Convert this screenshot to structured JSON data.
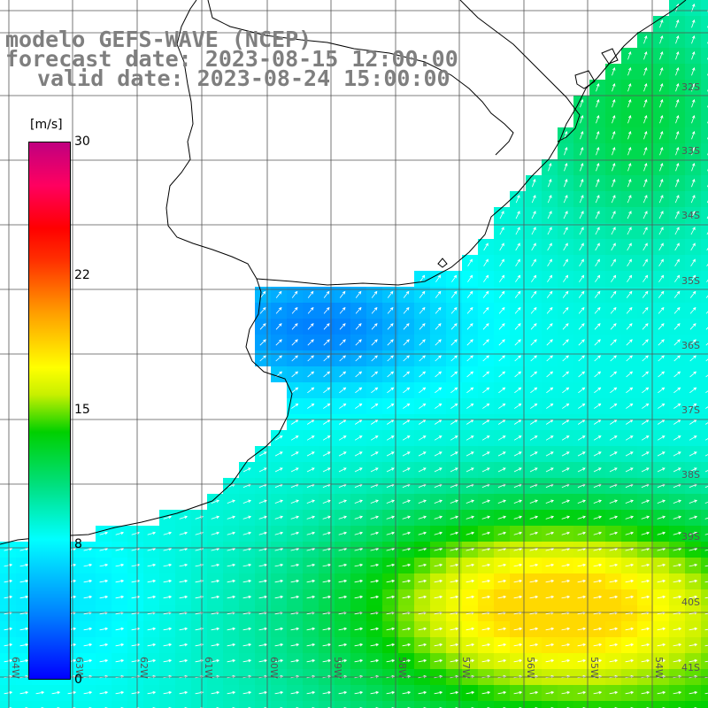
{
  "title": {
    "line1": "modelo GEFS-WAVE (NCEP)",
    "line2": "forecast date: 2023-08-15 12:00:00",
    "line3": "valid date: 2023-08-24 15:00:00"
  },
  "colorbar": {
    "units": "[m/s]",
    "ticks": [
      "30",
      "22",
      "15",
      "8",
      "0"
    ],
    "tick_values": [
      30,
      22,
      15,
      8,
      0
    ],
    "range": [
      0,
      30
    ]
  },
  "lat_labels": [
    "32S",
    "33S",
    "34S",
    "35S",
    "36S",
    "37S",
    "38S",
    "39S",
    "40S",
    "41S"
  ],
  "lon_labels": [
    "64W",
    "63W",
    "62W",
    "61W",
    "60W",
    "59W",
    "58W",
    "57W",
    "56W",
    "55W",
    "54W"
  ],
  "colors": {
    "land": "#ffffff",
    "coast": "#000000",
    "grid": "#555555",
    "arrows": "#ffffff",
    "title": "#7f7f7f"
  }
}
